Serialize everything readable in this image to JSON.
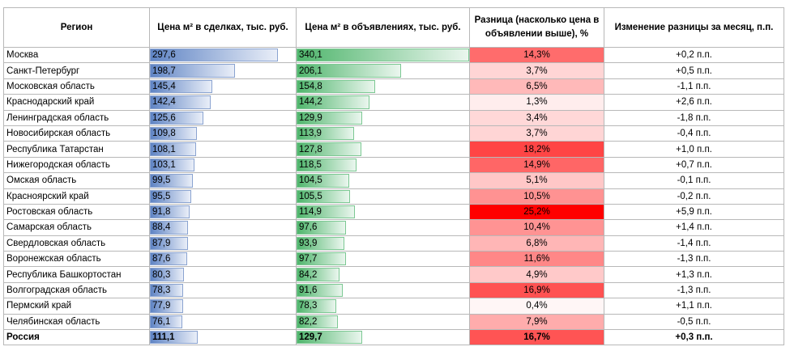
{
  "headers": {
    "region": "Регион",
    "deal": "Цена м² в сделках, тыс. руб.",
    "ad": "Цена м² в объявлениях, тыс. руб.",
    "diff": "Разница (насколько цена в объявлении выше), %",
    "change": "Изменение разницы за месяц, п.п."
  },
  "scale": {
    "price_max": 340.1,
    "diff_max": 25.2
  },
  "colors": {
    "deal_bar": "#5f84c4",
    "ad_bar": "#4fb56c",
    "diff_heat": "#ff0000"
  },
  "rows": [
    {
      "region": "Москва",
      "deal": "297,6",
      "ad": "340,1",
      "diff": "14,3%",
      "change": "+0,2 п.п."
    },
    {
      "region": "Санкт-Петербург",
      "deal": "198,7",
      "ad": "206,1",
      "diff": "3,7%",
      "change": "+0,5 п.п."
    },
    {
      "region": "Московская область",
      "deal": "145,4",
      "ad": "154,8",
      "diff": "6,5%",
      "change": "-1,1 п.п."
    },
    {
      "region": "Краснодарский край",
      "deal": "142,4",
      "ad": "144,2",
      "diff": "1,3%",
      "change": "+2,6 п.п."
    },
    {
      "region": "Ленинградская область",
      "deal": "125,6",
      "ad": "129,9",
      "diff": "3,4%",
      "change": "-1,8 п.п."
    },
    {
      "region": "Новосибирская область",
      "deal": "109,8",
      "ad": "113,9",
      "diff": "3,7%",
      "change": "-0,4 п.п."
    },
    {
      "region": "Республика Татарстан",
      "deal": "108,1",
      "ad": "127,8",
      "diff": "18,2%",
      "change": "+1,0 п.п."
    },
    {
      "region": "Нижегородская область",
      "deal": "103,1",
      "ad": "118,5",
      "diff": "14,9%",
      "change": "+0,7 п.п."
    },
    {
      "region": "Омская область",
      "deal": "99,5",
      "ad": "104,5",
      "diff": "5,1%",
      "change": "-0,1 п.п."
    },
    {
      "region": "Красноярский край",
      "deal": "95,5",
      "ad": "105,5",
      "diff": "10,5%",
      "change": "-0,2 п.п."
    },
    {
      "region": "Ростовская область",
      "deal": "91,8",
      "ad": "114,9",
      "diff": "25,2%",
      "change": "+5,9 п.п."
    },
    {
      "region": "Самарская область",
      "deal": "88,4",
      "ad": "97,6",
      "diff": "10,4%",
      "change": "+1,4 п.п."
    },
    {
      "region": "Свердловская область",
      "deal": "87,9",
      "ad": "93,9",
      "diff": "6,8%",
      "change": "-1,4 п.п."
    },
    {
      "region": "Воронежская область",
      "deal": "87,6",
      "ad": "97,7",
      "diff": "11,6%",
      "change": "-1,3 п.п."
    },
    {
      "region": "Республика Башкортостан",
      "deal": "80,3",
      "ad": "84,2",
      "diff": "4,9%",
      "change": "+1,3 п.п."
    },
    {
      "region": "Волгоградская область",
      "deal": "78,3",
      "ad": "91,6",
      "diff": "16,9%",
      "change": "-1,3 п.п."
    },
    {
      "region": "Пермский край",
      "deal": "77,9",
      "ad": "78,3",
      "diff": "0,4%",
      "change": "+1,1 п.п."
    },
    {
      "region": "Челябинская область",
      "deal": "76,1",
      "ad": "82,2",
      "diff": "7,9%",
      "change": "-0,5 п.п."
    },
    {
      "region": "Россия",
      "deal": "111,1",
      "ad": "129,7",
      "diff": "16,7%",
      "change": "+0,3 п.п.",
      "total": true
    }
  ]
}
